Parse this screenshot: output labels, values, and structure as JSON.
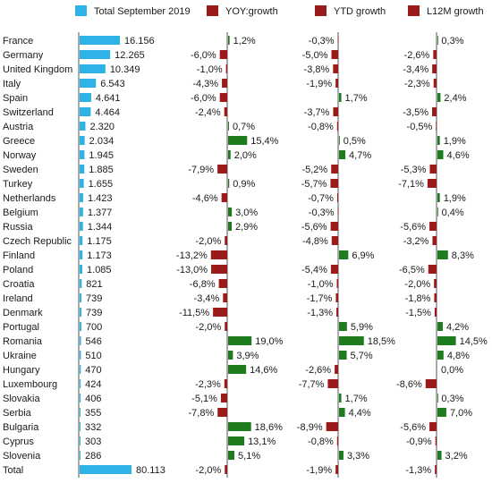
{
  "chart_data": {
    "type": "bar",
    "legend": [
      {
        "key": "total",
        "label": "Total  September 2019",
        "color": "#2db3e6"
      },
      {
        "key": "yoy",
        "label": "YOY:growth",
        "color": "#9b1b1b"
      },
      {
        "key": "ytd",
        "label": "YTD growth",
        "color": "#9b1b1b"
      },
      {
        "key": "l12m",
        "label": "L12M growth",
        "color": "#9b1b1b"
      }
    ],
    "colors": {
      "total": "#2db3e6",
      "positive": "#1e7b1e",
      "negative": "#9b1b1b",
      "axis": "#555555"
    },
    "rows": [
      {
        "country": "France",
        "total": 16156,
        "total_label": "16.156",
        "yoy": 1.2,
        "ytd": -0.3,
        "l12m": 0.3
      },
      {
        "country": "Germany",
        "total": 12265,
        "total_label": "12.265",
        "yoy": -6.0,
        "ytd": -5.0,
        "l12m": -2.6
      },
      {
        "country": "United Kingdom",
        "total": 10349,
        "total_label": "10.349",
        "yoy": -1.0,
        "ytd": -3.8,
        "l12m": -3.4
      },
      {
        "country": "Italy",
        "total": 6543,
        "total_label": "6.543",
        "yoy": -4.3,
        "ytd": -1.9,
        "l12m": -2.3
      },
      {
        "country": "Spain",
        "total": 4641,
        "total_label": "4.641",
        "yoy": -6.0,
        "ytd": 1.7,
        "l12m": 2.4
      },
      {
        "country": "Switzerland",
        "total": 4464,
        "total_label": "4.464",
        "yoy": -2.4,
        "ytd": -3.7,
        "l12m": -3.5
      },
      {
        "country": "Austria",
        "total": 2320,
        "total_label": "2.320",
        "yoy": 0.7,
        "ytd": -0.8,
        "l12m": -0.5
      },
      {
        "country": "Greece",
        "total": 2034,
        "total_label": "2.034",
        "yoy": 15.4,
        "ytd": 0.5,
        "l12m": 1.9
      },
      {
        "country": "Norway",
        "total": 1945,
        "total_label": "1.945",
        "yoy": 2.0,
        "ytd": 4.7,
        "l12m": 4.6
      },
      {
        "country": "Sweden",
        "total": 1885,
        "total_label": "1.885",
        "yoy": -7.9,
        "ytd": -5.2,
        "l12m": -5.3
      },
      {
        "country": "Turkey",
        "total": 1655,
        "total_label": "1.655",
        "yoy": 0.9,
        "ytd": -5.7,
        "l12m": -7.1
      },
      {
        "country": "Netherlands",
        "total": 1423,
        "total_label": "1.423",
        "yoy": -4.6,
        "ytd": -0.7,
        "l12m": 1.9
      },
      {
        "country": "Belgium",
        "total": 1377,
        "total_label": "1.377",
        "yoy": 3.0,
        "ytd": -0.3,
        "l12m": 0.4
      },
      {
        "country": "Russia",
        "total": 1344,
        "total_label": "1.344",
        "yoy": 2.9,
        "ytd": -5.6,
        "l12m": -5.6
      },
      {
        "country": "Czech Republic",
        "total": 1175,
        "total_label": "1.175",
        "yoy": -2.0,
        "ytd": -4.8,
        "l12m": -3.2
      },
      {
        "country": "Finland",
        "total": 1173,
        "total_label": "1.173",
        "yoy": -13.2,
        "ytd": 6.9,
        "l12m": 8.3
      },
      {
        "country": "Poland",
        "total": 1085,
        "total_label": "1.085",
        "yoy": -13.0,
        "ytd": -5.4,
        "l12m": -6.5
      },
      {
        "country": "Croatia",
        "total": 821,
        "total_label": "821",
        "yoy": -6.8,
        "ytd": -1.0,
        "l12m": -2.0
      },
      {
        "country": "Ireland",
        "total": 739,
        "total_label": "739",
        "yoy": -3.4,
        "ytd": -1.7,
        "l12m": -1.8
      },
      {
        "country": "Denmark",
        "total": 739,
        "total_label": "739",
        "yoy": -11.5,
        "ytd": -1.3,
        "l12m": -1.5
      },
      {
        "country": "Portugal",
        "total": 700,
        "total_label": "700",
        "yoy": -2.0,
        "ytd": 5.9,
        "l12m": 4.2
      },
      {
        "country": "Romania",
        "total": 546,
        "total_label": "546",
        "yoy": 19.0,
        "ytd": 18.5,
        "l12m": 14.5
      },
      {
        "country": "Ukraine",
        "total": 510,
        "total_label": "510",
        "yoy": 3.9,
        "ytd": 5.7,
        "l12m": 4.8
      },
      {
        "country": "Hungary",
        "total": 470,
        "total_label": "470",
        "yoy": 14.6,
        "ytd": -2.6,
        "l12m": 0.0
      },
      {
        "country": "Luxembourg",
        "total": 424,
        "total_label": "424",
        "yoy": -2.3,
        "ytd": -7.7,
        "l12m": -8.6
      },
      {
        "country": "Slovakia",
        "total": 406,
        "total_label": "406",
        "yoy": -5.1,
        "ytd": 1.7,
        "l12m": 0.3
      },
      {
        "country": "Serbia",
        "total": 355,
        "total_label": "355",
        "yoy": -7.8,
        "ytd": 4.4,
        "l12m": 7.0
      },
      {
        "country": "Bulgaria",
        "total": 332,
        "total_label": "332",
        "yoy": 18.6,
        "ytd": -8.9,
        "l12m": -5.6
      },
      {
        "country": "Cyprus",
        "total": 303,
        "total_label": "303",
        "yoy": 13.1,
        "ytd": -0.8,
        "l12m": -0.9
      },
      {
        "country": "Slovenia",
        "total": 286,
        "total_label": "286",
        "yoy": 5.1,
        "ytd": 3.3,
        "l12m": 3.2
      },
      {
        "country": "Total",
        "total": 80113,
        "total_label": "80.113",
        "yoy": -2.0,
        "ytd": -1.9,
        "l12m": -1.3
      }
    ]
  }
}
